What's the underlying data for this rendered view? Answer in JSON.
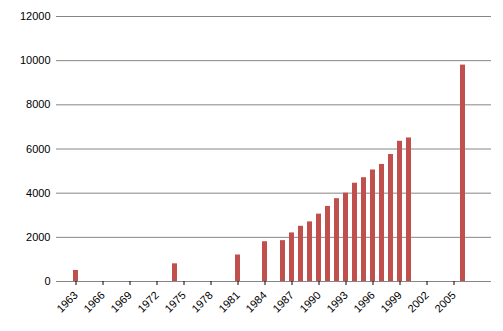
{
  "chart_data": {
    "type": "bar",
    "categories": [
      "1963",
      null,
      null,
      "1966",
      null,
      null,
      "1969",
      null,
      null,
      "1972",
      null,
      null,
      "1975",
      null,
      null,
      "1978",
      null,
      null,
      "1981",
      null,
      null,
      "1984",
      null,
      null,
      "1987",
      null,
      null,
      "1990",
      null,
      null,
      "1993",
      null,
      null,
      "1996",
      null,
      null,
      "1999",
      null,
      null,
      "2002",
      null,
      null,
      "2005",
      null,
      null
    ],
    "values": [
      500,
      null,
      null,
      null,
      null,
      null,
      null,
      null,
      null,
      null,
      null,
      800,
      null,
      null,
      null,
      null,
      null,
      null,
      1200,
      null,
      null,
      1800,
      null,
      1850,
      2200,
      2500,
      2700,
      3050,
      3400,
      3750,
      4000,
      4450,
      4700,
      5050,
      5300,
      5750,
      6350,
      6500,
      null,
      null,
      null,
      null,
      null,
      9800,
      null
    ],
    "color": "#c0504d",
    "ylim": [
      0,
      12000
    ],
    "yticks": [
      0,
      2000,
      4000,
      6000,
      8000,
      10000,
      12000
    ],
    "grid": true
  }
}
